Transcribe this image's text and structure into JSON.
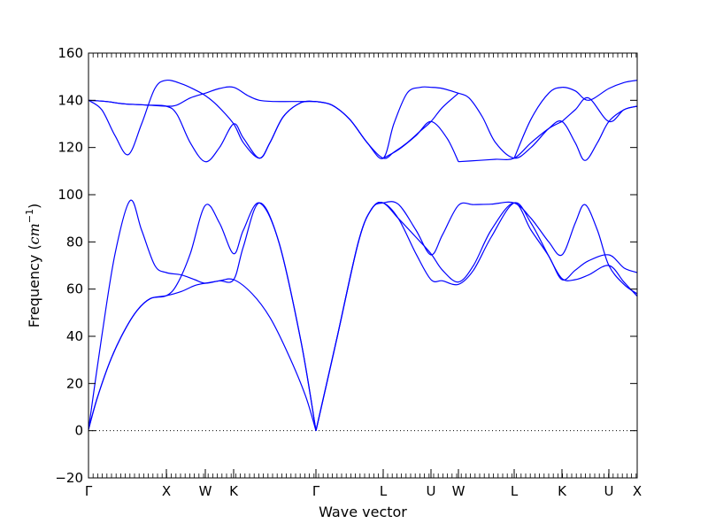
{
  "chart_data": {
    "type": "line",
    "xlabel": "Wave vector",
    "ylabel_text": "Frequency (",
    "ylabel_math": "cm",
    "ylabel_sup": "−1",
    "ylabel_close": ")",
    "ylim": [
      -20,
      160
    ],
    "yticks": [
      -20,
      0,
      20,
      40,
      60,
      80,
      100,
      120,
      140,
      160
    ],
    "ytick_labels": [
      "−20",
      "0",
      "20",
      "40",
      "60",
      "80",
      "100",
      "120",
      "140",
      "160"
    ],
    "xlim": [
      0,
      620
    ],
    "x_points": [
      {
        "label": "Γ",
        "x": 0
      },
      {
        "label": "X",
        "x": 88
      },
      {
        "label": "W",
        "x": 132
      },
      {
        "label": "K",
        "x": 164
      },
      {
        "label": "Γ",
        "x": 257
      },
      {
        "label": "L",
        "x": 333
      },
      {
        "label": "U",
        "x": 387
      },
      {
        "label": "W",
        "x": 418
      },
      {
        "label": "L",
        "x": 481
      },
      {
        "label": "K",
        "x": 535
      },
      {
        "label": "U",
        "x": 588
      },
      {
        "label": "X",
        "x": 620
      }
    ],
    "zero_line": {
      "y": 0,
      "style": "dotted"
    },
    "series_color": "#0000ff",
    "series": [
      {
        "x": [
          0,
          10,
          25,
          40,
          55,
          70,
          88,
          105,
          120,
          132,
          148,
          164,
          185,
          205,
          225,
          245,
          257
        ],
        "y": [
          0.5,
          14,
          30,
          42,
          51,
          56,
          57.2,
          59,
          61.5,
          62.5,
          63.5,
          64,
          58,
          48,
          33,
          15,
          0
        ]
      },
      {
        "x": [
          0,
          10,
          25,
          40,
          55,
          70,
          88,
          100,
          115,
          132,
          148,
          164,
          175,
          193,
          215,
          240,
          257
        ],
        "y": [
          0.5,
          14,
          30,
          42,
          51,
          56,
          57.2,
          62,
          75,
          95.5,
          88,
          75,
          85,
          96.5,
          80,
          38,
          0
        ]
      },
      {
        "x": [
          0,
          15,
          30,
          47,
          60,
          75,
          88,
          105,
          120,
          132,
          148,
          164,
          175,
          193,
          215,
          240,
          257
        ],
        "y": [
          0.5,
          40,
          75,
          97.5,
          85,
          70,
          67,
          66,
          64,
          62.5,
          63.5,
          64,
          78,
          96.5,
          80,
          38,
          0
        ]
      },
      {
        "x": [
          257,
          280,
          305,
          320,
          333,
          350,
          370,
          387,
          400,
          418,
          435,
          455,
          481,
          500,
          520,
          535,
          550,
          565,
          588,
          605,
          620
        ],
        "y": [
          0,
          38,
          80,
          94,
          96.5,
          90,
          75,
          64,
          63.5,
          62,
          68,
          82,
          96.5,
          88,
          74,
          64.5,
          64,
          66,
          70,
          63,
          57
        ]
      },
      {
        "x": [
          257,
          280,
          305,
          320,
          333,
          350,
          370,
          387,
          400,
          418,
          435,
          455,
          481,
          500,
          520,
          535,
          550,
          565,
          588,
          605,
          620
        ],
        "y": [
          0,
          38,
          80,
          94,
          96.5,
          90,
          82,
          75,
          68,
          63,
          70,
          85,
          96.5,
          85,
          74,
          64,
          68,
          72,
          74.5,
          69,
          67
        ]
      },
      {
        "x": [
          257,
          280,
          305,
          320,
          333,
          350,
          370,
          387,
          400,
          418,
          435,
          455,
          481,
          500,
          520,
          535,
          550,
          561,
          575,
          588,
          605,
          620
        ],
        "y": [
          0,
          38,
          80,
          94,
          96.5,
          96,
          85,
          74.5,
          83,
          95.5,
          95.8,
          96,
          96.5,
          90,
          80,
          74.5,
          88,
          95.8,
          85,
          70,
          62,
          58
        ]
      },
      {
        "x": [
          0,
          20,
          40,
          65,
          88,
          100,
          115,
          132,
          148,
          164,
          180,
          193,
          210,
          230,
          257
        ],
        "y": [
          140,
          139.5,
          138.5,
          138,
          137.5,
          138,
          141,
          143,
          145,
          145.5,
          142,
          140,
          139.5,
          139.5,
          139.5
        ]
      },
      {
        "x": [
          0,
          15,
          30,
          45,
          60,
          75,
          88,
          105,
          120,
          132,
          145,
          164,
          175,
          193,
          205,
          220,
          240,
          257
        ],
        "y": [
          140,
          136,
          125,
          117,
          130,
          145,
          148.5,
          147,
          144.5,
          142,
          138,
          130,
          122,
          115.5,
          122,
          133,
          139,
          139.5
        ]
      },
      {
        "x": [
          0,
          20,
          40,
          65,
          88,
          100,
          115,
          132,
          148,
          164,
          175,
          193,
          205,
          220,
          240,
          257
        ],
        "y": [
          140,
          139.5,
          138.5,
          138,
          137.5,
          134,
          122,
          114,
          120,
          130,
          124,
          115.5,
          122,
          133,
          139,
          139.5
        ]
      },
      {
        "x": [
          257,
          275,
          295,
          315,
          333,
          345,
          360,
          375,
          387,
          400,
          418
        ],
        "y": [
          139.5,
          138,
          132,
          122,
          115.5,
          118,
          122,
          127,
          131,
          137,
          143
        ]
      },
      {
        "x": [
          257,
          275,
          295,
          315,
          333,
          345,
          360,
          375,
          387,
          400,
          418
        ],
        "y": [
          139.5,
          138,
          132,
          122,
          115.5,
          130,
          143,
          145.5,
          145.5,
          145,
          143
        ]
      },
      {
        "x": [
          333,
          350,
          370,
          387,
          405,
          418
        ],
        "y": [
          115.5,
          119,
          125,
          131,
          124,
          114
        ]
      },
      {
        "x": [
          418,
          430,
          445,
          460,
          481,
          500,
          520,
          535,
          550,
          561,
          575,
          588,
          605,
          620
        ],
        "y": [
          143,
          141,
          133,
          122,
          115.5,
          120,
          128,
          131,
          122,
          114.5,
          122,
          131,
          136,
          137.5
        ]
      },
      {
        "x": [
          418,
          440,
          460,
          481,
          500,
          520,
          535
        ],
        "y": [
          114,
          114.5,
          115,
          115.5,
          122,
          128,
          131
        ]
      },
      {
        "x": [
          481,
          500,
          520,
          535,
          550,
          565,
          588,
          605,
          620
        ],
        "y": [
          115.5,
          132,
          143,
          145.5,
          144,
          140,
          145,
          147.5,
          148.5
        ]
      },
      {
        "x": [
          535,
          550,
          565,
          588,
          605,
          620
        ],
        "y": [
          131,
          136,
          141,
          131,
          136,
          137.5
        ]
      }
    ]
  }
}
